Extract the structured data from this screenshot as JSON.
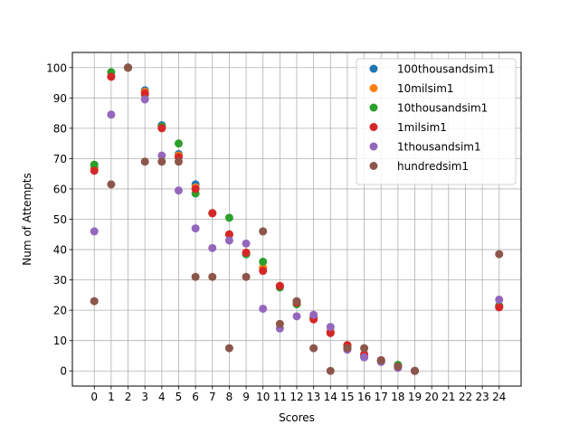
{
  "chart_data": {
    "type": "scatter",
    "title": "",
    "xlabel": "Scores",
    "ylabel": "Num of Attempts",
    "xlim": [
      -1.3,
      25.3
    ],
    "ylim": [
      -5,
      105
    ],
    "xticks": [
      0,
      1,
      2,
      3,
      4,
      5,
      6,
      7,
      8,
      9,
      10,
      11,
      12,
      13,
      14,
      15,
      16,
      17,
      18,
      19,
      20,
      21,
      22,
      23,
      24
    ],
    "yticks": [
      0,
      10,
      20,
      30,
      40,
      50,
      60,
      70,
      80,
      90,
      100
    ],
    "grid": true,
    "legend_position": "top-right",
    "series": [
      {
        "name": "100thousandsim1",
        "color": "#1f77b4",
        "x": [
          0,
          1,
          2,
          3,
          4,
          5,
          6,
          7,
          8,
          9,
          10,
          11,
          12,
          13,
          14,
          15,
          16,
          17,
          18,
          19,
          24
        ],
        "y": [
          67,
          97,
          100,
          92.5,
          81,
          71.5,
          61.5,
          52,
          45,
          38.5,
          34,
          28,
          22,
          17.5,
          13,
          8,
          5,
          3.5,
          1.5,
          0,
          21
        ]
      },
      {
        "name": "10milsim1",
        "color": "#ff7f0e",
        "x": [
          0,
          1,
          2,
          3,
          4,
          5,
          6,
          7,
          8,
          9,
          10,
          11,
          12,
          13,
          14,
          15,
          16,
          17,
          18,
          19,
          24
        ],
        "y": [
          66.5,
          97,
          100,
          92,
          80.5,
          71,
          60.5,
          52,
          45,
          39,
          34,
          28,
          22.5,
          17.5,
          13,
          8.5,
          5,
          3.5,
          1.5,
          0,
          21
        ]
      },
      {
        "name": "10thousandsim1",
        "color": "#2ca02c",
        "x": [
          0,
          1,
          2,
          3,
          4,
          5,
          6,
          7,
          8,
          9,
          10,
          11,
          12,
          13,
          14,
          15,
          16,
          17,
          18,
          19,
          24
        ],
        "y": [
          68,
          98.5,
          100,
          91,
          80.5,
          75,
          58.5,
          52,
          50.5,
          38.5,
          36,
          27.5,
          22,
          17.5,
          12.5,
          8,
          4.5,
          3,
          2,
          0,
          21.5
        ]
      },
      {
        "name": "1milsim1",
        "color": "#d62728",
        "x": [
          0,
          1,
          2,
          3,
          4,
          5,
          6,
          7,
          8,
          9,
          10,
          11,
          12,
          13,
          14,
          15,
          16,
          17,
          18,
          19,
          24
        ],
        "y": [
          66,
          97,
          100,
          91.5,
          80,
          70.5,
          60,
          52,
          45,
          39,
          33,
          28,
          22.5,
          17,
          12.5,
          8.5,
          5.5,
          3.5,
          1.5,
          0,
          21
        ]
      },
      {
        "name": "1thousandsim1",
        "color": "#9467bd",
        "x": [
          0,
          1,
          2,
          3,
          4,
          5,
          6,
          7,
          8,
          9,
          10,
          11,
          12,
          13,
          14,
          15,
          16,
          17,
          18,
          19,
          24
        ],
        "y": [
          46,
          84.5,
          100,
          89.5,
          71,
          59.5,
          47,
          40.5,
          43,
          42,
          20.5,
          14,
          18,
          18.5,
          14.5,
          7,
          4.5,
          3,
          1,
          0,
          23.5
        ]
      },
      {
        "name": "hundredsim1",
        "color": "#8c564b",
        "x": [
          0,
          1,
          2,
          3,
          4,
          5,
          6,
          7,
          8,
          9,
          10,
          11,
          12,
          13,
          14,
          15,
          16,
          17,
          18,
          19,
          24
        ],
        "y": [
          23,
          61.5,
          100,
          69,
          69,
          69,
          31,
          31,
          7.5,
          31,
          46,
          15.5,
          23,
          7.5,
          0,
          7.5,
          7.5,
          3.5,
          1.5,
          0,
          38.5
        ]
      }
    ]
  }
}
